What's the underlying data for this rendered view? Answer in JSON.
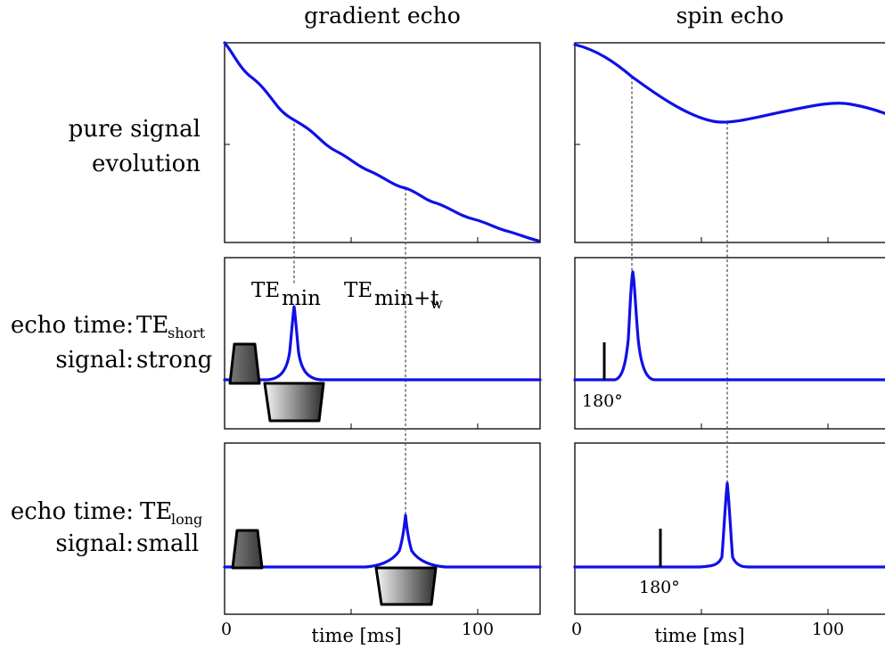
{
  "columns": {
    "gradient": "gradient echo",
    "spin": "spin echo"
  },
  "rows": {
    "pure": {
      "line1": "pure signal",
      "line2": "evolution"
    },
    "short": {
      "echo_prefix": "echo time:",
      "te": "TE",
      "te_sub": "short",
      "signal_prefix": "signal:",
      "signal_value": "strong"
    },
    "long": {
      "echo_prefix": "echo time:",
      "te": "TE",
      "te_sub": "long",
      "signal_prefix": "signal:",
      "signal_value": "small"
    }
  },
  "annotations": {
    "te_min": {
      "main": "TE",
      "sub": "min"
    },
    "te_min_tw": {
      "main": "TE",
      "sub": "min+t",
      "sub2": "w"
    },
    "pulse_180_short": "180°",
    "pulse_180_long": "180°"
  },
  "axes": {
    "xlabel": "time [ms]",
    "ticks": [
      "0",
      "100"
    ]
  },
  "colors": {
    "signal": "#1010e6",
    "frame": "#000000",
    "guide": "#555555"
  },
  "chart_data": [
    {
      "type": "line",
      "panel": "gradient echo / pure signal evolution",
      "xlim": [
        0,
        125
      ],
      "ylim": [
        0,
        1
      ],
      "x": [
        0,
        10,
        20,
        27,
        35,
        45,
        55,
        65,
        75,
        85,
        95,
        105,
        115,
        125
      ],
      "values": [
        1.0,
        0.83,
        0.71,
        0.6,
        0.55,
        0.47,
        0.4,
        0.35,
        0.28,
        0.22,
        0.17,
        0.12,
        0.07,
        0.02
      ]
    },
    {
      "type": "line",
      "panel": "spin echo / pure signal evolution",
      "xlim": [
        0,
        125
      ],
      "ylim": [
        0,
        1
      ],
      "x": [
        0,
        10,
        22,
        35,
        50,
        60,
        70,
        85,
        100,
        110,
        120,
        125
      ],
      "values": [
        0.97,
        0.93,
        0.83,
        0.65,
        0.48,
        0.46,
        0.48,
        0.56,
        0.63,
        0.63,
        0.58,
        0.53
      ]
    },
    {
      "type": "line",
      "panel": "gradient echo / TE short",
      "xlim": [
        0,
        125
      ],
      "peak_x": 27,
      "peak_y": 0.65
    },
    {
      "type": "line",
      "panel": "gradient echo / TE long",
      "xlim": [
        0,
        125
      ],
      "peak_x": 72,
      "peak_y": 0.45
    },
    {
      "type": "line",
      "panel": "spin echo / TE short",
      "xlim": [
        0,
        125
      ],
      "peak_x": 22,
      "peak_y": 0.95,
      "pulse_x": 11
    },
    {
      "type": "line",
      "panel": "spin echo / TE long",
      "xlim": [
        0,
        125
      ],
      "peak_x": 60,
      "peak_y": 0.7,
      "pulse_x": 33
    }
  ]
}
